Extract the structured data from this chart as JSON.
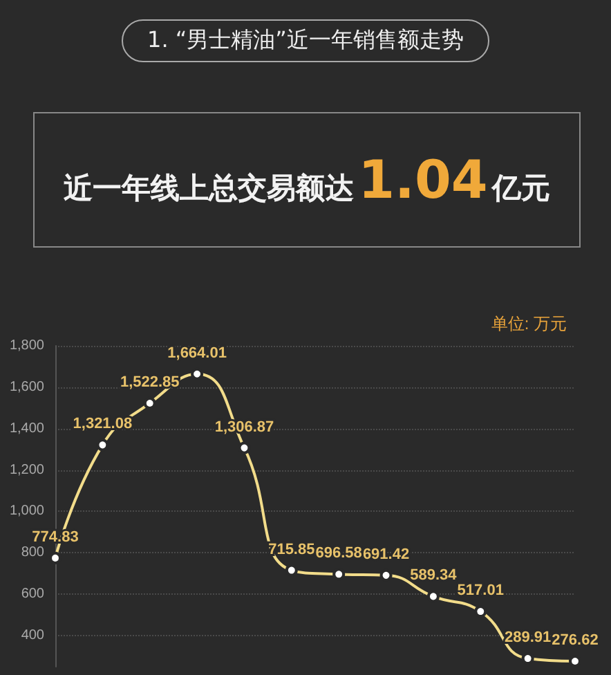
{
  "chart_data": {
    "type": "line",
    "title": "1. “男士精油”近一年销售额走势",
    "subtitle": "近一年线上总交易额达1.04亿元",
    "ylabel": "单位: 万元",
    "categories": [
      null,
      null,
      null,
      null,
      null,
      null,
      null,
      null,
      null,
      null,
      null,
      null
    ],
    "series": [
      {
        "color": "#f2dc8a",
        "values": [
          774.83,
          1321.08,
          1522.85,
          1664.01,
          1306.87,
          715.85,
          696.58,
          691.42,
          589.34,
          517.01,
          289.91,
          276.62
        ],
        "value_labels": [
          "774.83",
          "1,321.08",
          "1,522.85",
          "1,664.01",
          "1,306.87",
          "715.85",
          "696.58",
          "691.42",
          "589.34",
          "517.01",
          "289.91",
          "276.62"
        ]
      }
    ],
    "ylim": [
      250,
      1800
    ],
    "yticks": [
      400,
      600,
      800,
      {
        "value": 1000,
        "label": "1,000"
      },
      {
        "value": 1200,
        "label": "1,200"
      },
      {
        "value": 1400,
        "label": "1,400"
      },
      {
        "value": 1600,
        "label": "1,600"
      },
      {
        "value": 1800,
        "label": "1,800"
      }
    ],
    "grid": "y",
    "marker": "circle"
  }
}
